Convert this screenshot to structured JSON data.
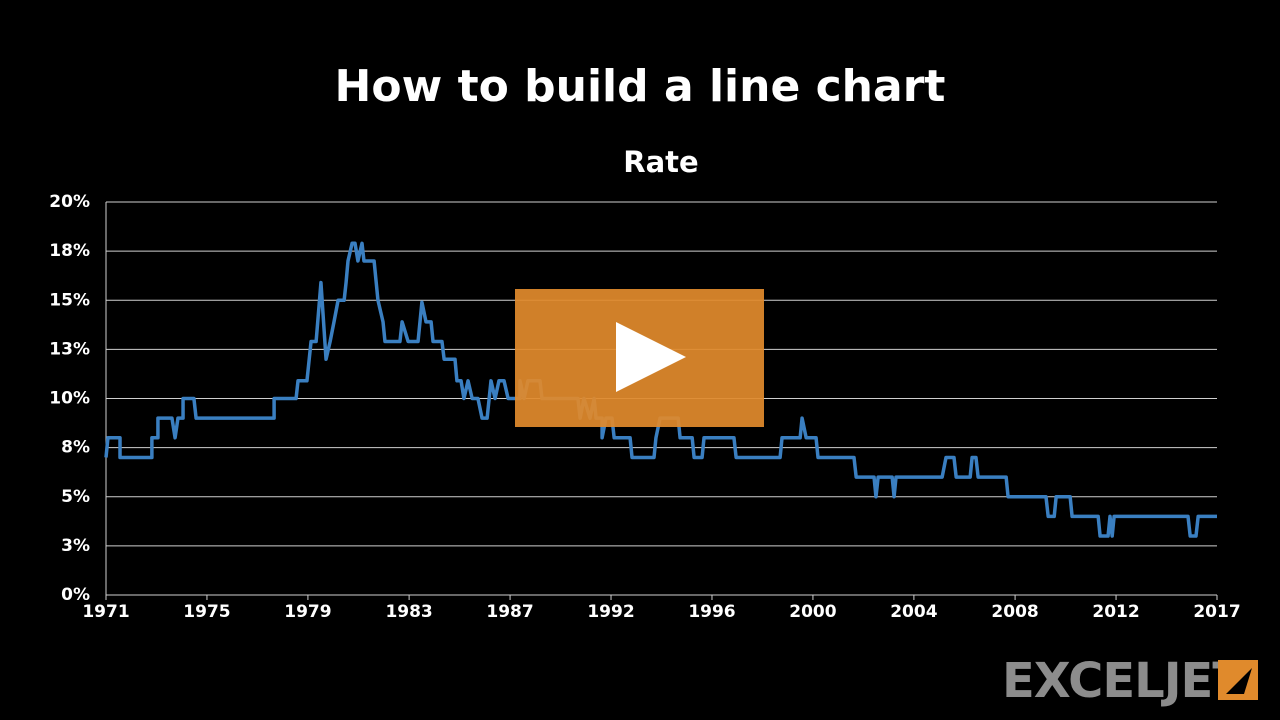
{
  "header": {
    "title": "How to build a line chart",
    "logo": "EXCELJET"
  },
  "chart_data": {
    "type": "line",
    "title": "Rate",
    "x": [
      1971.0,
      1971.08,
      1971.58,
      1971.58,
      1972.9,
      1972.9,
      1973.15,
      1973.15,
      1973.73,
      1973.86,
      1973.98,
      1974.19,
      1974.19,
      1974.64,
      1974.73,
      1977.96,
      1977.96,
      1978.87,
      1978.95,
      1979.32,
      1979.49,
      1979.7,
      1979.9,
      1980.11,
      1980.28,
      1980.44,
      1980.61,
      1980.86,
      1980.94,
      1981.02,
      1981.19,
      1981.31,
      1981.43,
      1981.6,
      1981.68,
      1982.1,
      1982.26,
      1982.47,
      1982.55,
      1983.17,
      1983.26,
      1983.51,
      1983.92,
      1984.08,
      1984.25,
      1984.46,
      1984.54,
      1984.91,
      1985.0,
      1985.45,
      1985.53,
      1985.7,
      1985.82,
      1985.99,
      1986.16,
      1986.4,
      1986.57,
      1986.78,
      1986.94,
      1987.11,
      1987.27,
      1987.48,
      1987.65,
      1988.14,
      1988.14,
      1988.31,
      1988.47,
      1988.97,
      1989.05,
      1990.54,
      1990.63,
      1990.79,
      1991.04,
      1991.21,
      1991.29,
      1991.54,
      1991.54,
      1991.7,
      1991.95,
      1992.04,
      1992.7,
      1992.78,
      1993.69,
      1993.77,
      1993.94,
      1994.69,
      1994.77,
      1995.27,
      1995.35,
      1995.68,
      1995.76,
      1997.0,
      1997.09,
      1998.91,
      1998.99,
      1999.74,
      1999.82,
      1999.99,
      2000.4,
      2000.48,
      2001.97,
      2002.06,
      2002.8,
      2002.88,
      2002.97,
      2003.55,
      2003.63,
      2003.71,
      2005.62,
      2005.78,
      2006.11,
      2006.2,
      2006.78,
      2006.86,
      2007.02,
      2007.11,
      2008.27,
      2008.35,
      2009.92,
      2010.01,
      2010.26,
      2010.34,
      2010.92,
      2011.0,
      2012.08,
      2012.16,
      2012.49,
      2012.57,
      2012.66,
      2012.74,
      2015.8,
      2015.89,
      2016.13,
      2016.22,
      2017.0
    ],
    "series": [
      {
        "name": "Rate",
        "color": "#3a7fc1",
        "values": [
          7.0,
          8.0,
          8.0,
          7.0,
          7.0,
          8.0,
          8.0,
          9.0,
          9.0,
          8.0,
          9.0,
          9.0,
          10.0,
          10.0,
          9.0,
          9.0,
          10.0,
          10.0,
          10.9,
          10.9,
          12.9,
          12.9,
          15.9,
          12.0,
          12.9,
          13.9,
          15.0,
          15.0,
          15.9,
          17.0,
          17.9,
          17.9,
          17.0,
          17.9,
          17.0,
          17.0,
          15.0,
          13.9,
          12.9,
          12.9,
          13.9,
          12.9,
          12.9,
          14.9,
          13.9,
          13.9,
          12.9,
          12.9,
          12.0,
          12.0,
          10.9,
          10.9,
          10.0,
          10.9,
          10.0,
          10.0,
          9.0,
          9.0,
          10.9,
          10.0,
          10.9,
          10.9,
          10.0,
          10.0,
          10.9,
          10.0,
          10.9,
          10.9,
          10.0,
          10.0,
          9.0,
          10.0,
          9.0,
          10.0,
          9.0,
          9.0,
          8.0,
          9.0,
          9.0,
          8.0,
          8.0,
          7.0,
          7.0,
          8.0,
          9.0,
          9.0,
          8.0,
          8.0,
          7.0,
          7.0,
          8.0,
          8.0,
          7.0,
          7.0,
          8.0,
          8.0,
          9.0,
          8.0,
          8.0,
          7.0,
          7.0,
          6.0,
          6.0,
          5.0,
          6.0,
          6.0,
          5.0,
          6.0,
          6.0,
          7.0,
          7.0,
          6.0,
          6.0,
          7.0,
          7.0,
          6.0,
          6.0,
          5.0,
          5.0,
          4.0,
          4.0,
          5.0,
          5.0,
          4.0,
          4.0,
          3.0,
          3.0,
          4.0,
          3.0,
          4.0,
          4.0,
          3.0,
          3.0,
          4.0,
          4.0
        ]
      }
    ],
    "xlim": [
      1971,
      2017
    ],
    "xticks": [
      {
        "value": 1971,
        "label": "1971"
      },
      {
        "value": 1975.18,
        "label": "1975"
      },
      {
        "value": 1979.36,
        "label": "1979"
      },
      {
        "value": 1983.55,
        "label": "1983"
      },
      {
        "value": 1987.73,
        "label": "1987"
      },
      {
        "value": 1991.91,
        "label": "1992"
      },
      {
        "value": 1996.09,
        "label": "1996"
      },
      {
        "value": 2000.27,
        "label": "2000"
      },
      {
        "value": 2004.45,
        "label": "2004"
      },
      {
        "value": 2008.64,
        "label": "2008"
      },
      {
        "value": 2012.82,
        "label": "2012"
      },
      {
        "value": 2017,
        "label": "2017"
      }
    ],
    "ylim": [
      0,
      20
    ],
    "yticks": [
      {
        "value": 0,
        "label": "0%"
      },
      {
        "value": 2.5,
        "label": "3%"
      },
      {
        "value": 5,
        "label": "5%"
      },
      {
        "value": 7.5,
        "label": "8%"
      },
      {
        "value": 10,
        "label": "10%"
      },
      {
        "value": 12.5,
        "label": "13%"
      },
      {
        "value": 15,
        "label": "15%"
      },
      {
        "value": 17.5,
        "label": "18%"
      },
      {
        "value": 20,
        "label": "20%"
      }
    ],
    "grid": true
  }
}
